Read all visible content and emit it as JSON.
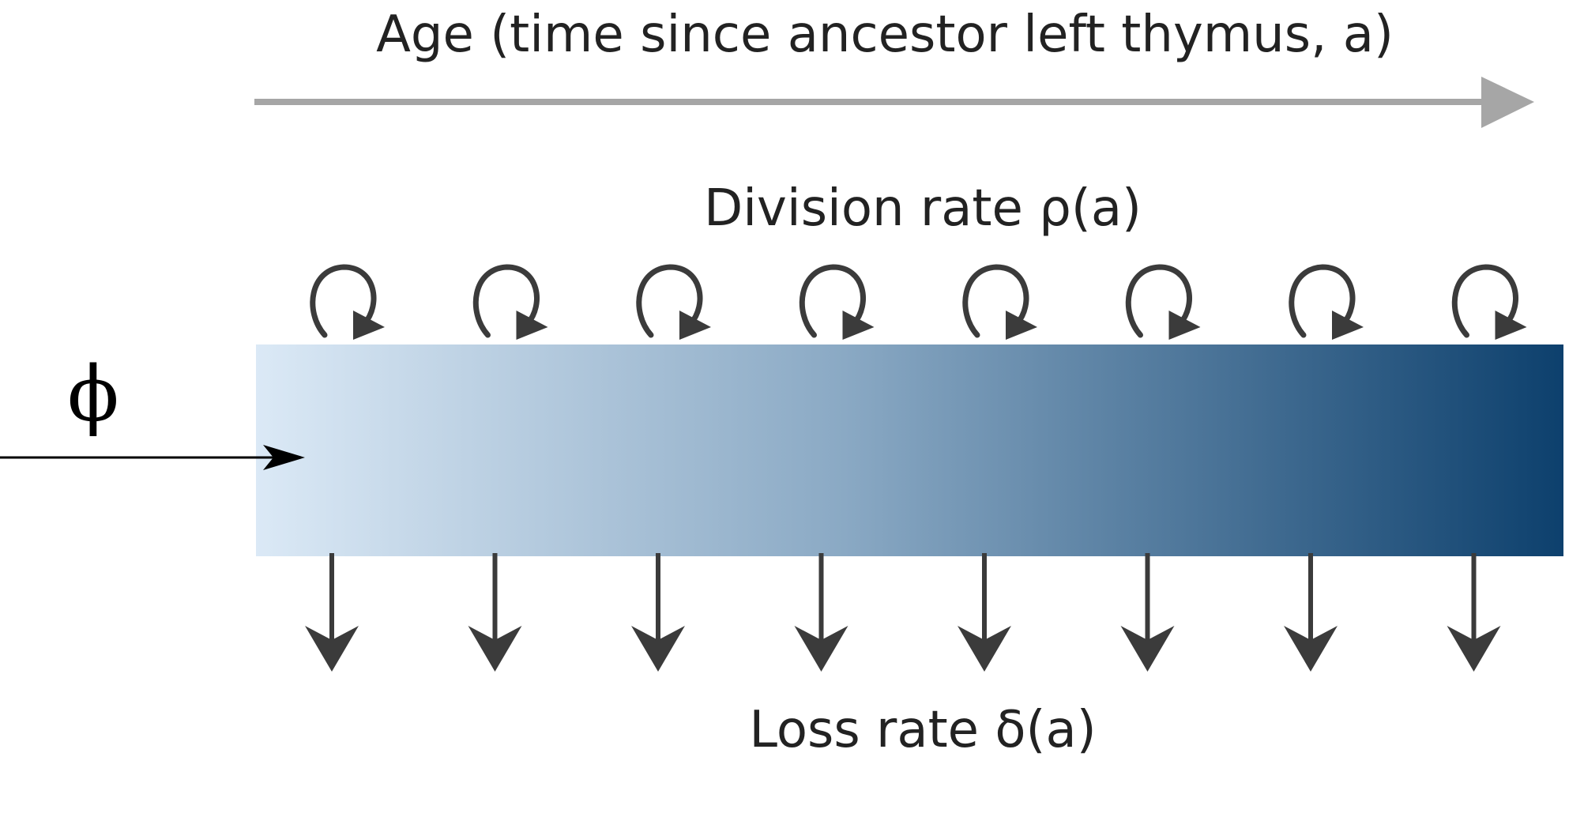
{
  "diagram": {
    "age_axis_label": "Age (time since ancestor left thymus, a)",
    "division_label": "Division rate ρ(a)",
    "loss_label": "Loss rate δ(a)",
    "influx_label": "ϕ",
    "division_loop_count": 8,
    "loss_arrow_count": 8
  },
  "colors": {
    "axis_arrow": "#a6a6a6",
    "gradient_start": "#dbe9f6",
    "gradient_mid": "#8aa9c4",
    "gradient_end": "#0d406d",
    "loop_and_arrow": "#3b3b3b",
    "influx_arrow": "#000000"
  }
}
